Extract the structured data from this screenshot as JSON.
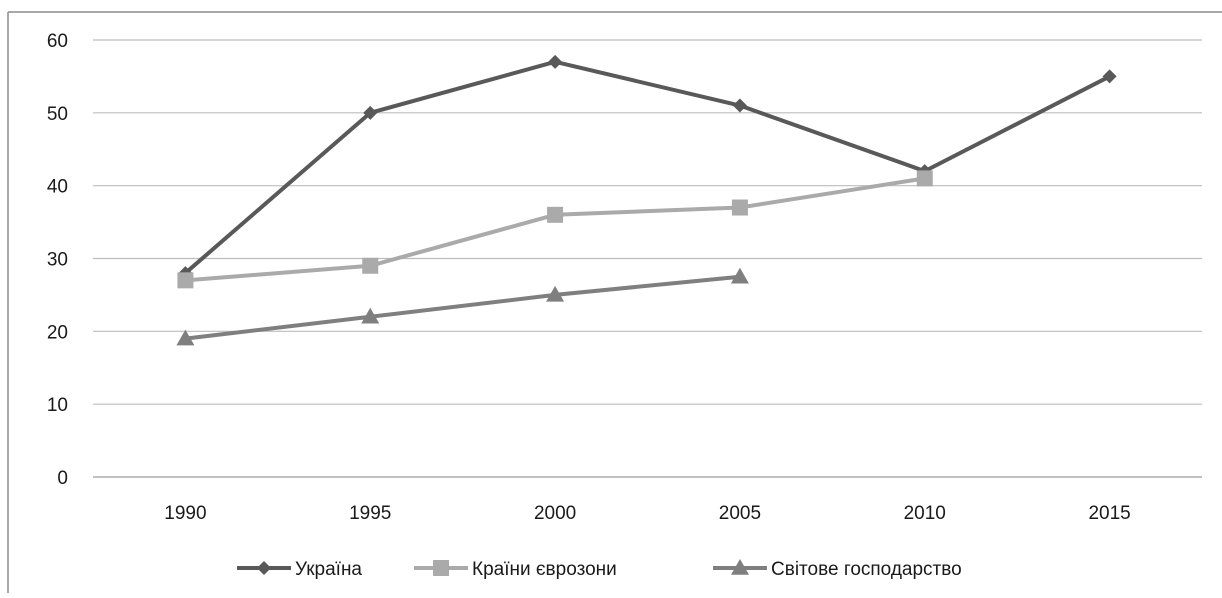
{
  "chart_data": {
    "type": "line",
    "title": "",
    "xlabel": "",
    "ylabel": "",
    "categories": [
      "1990",
      "1995",
      "2000",
      "2005",
      "2010",
      "2015"
    ],
    "ylim": [
      0,
      60
    ],
    "yticks": [
      0,
      10,
      20,
      30,
      40,
      50,
      60
    ],
    "grid": true,
    "legend_position": "bottom",
    "series": [
      {
        "name": "Україна",
        "values": [
          28,
          50,
          57,
          51,
          42,
          55
        ],
        "color": "#595959",
        "marker": "diamond"
      },
      {
        "name": "Країни єврозони",
        "values": [
          27,
          29,
          36,
          37,
          41,
          null
        ],
        "color": "#aaaaaa",
        "marker": "square"
      },
      {
        "name": "Світове господарство",
        "values": [
          19,
          22,
          25,
          27.5,
          null,
          null
        ],
        "color": "#7f7f7f",
        "marker": "triangle"
      }
    ]
  }
}
